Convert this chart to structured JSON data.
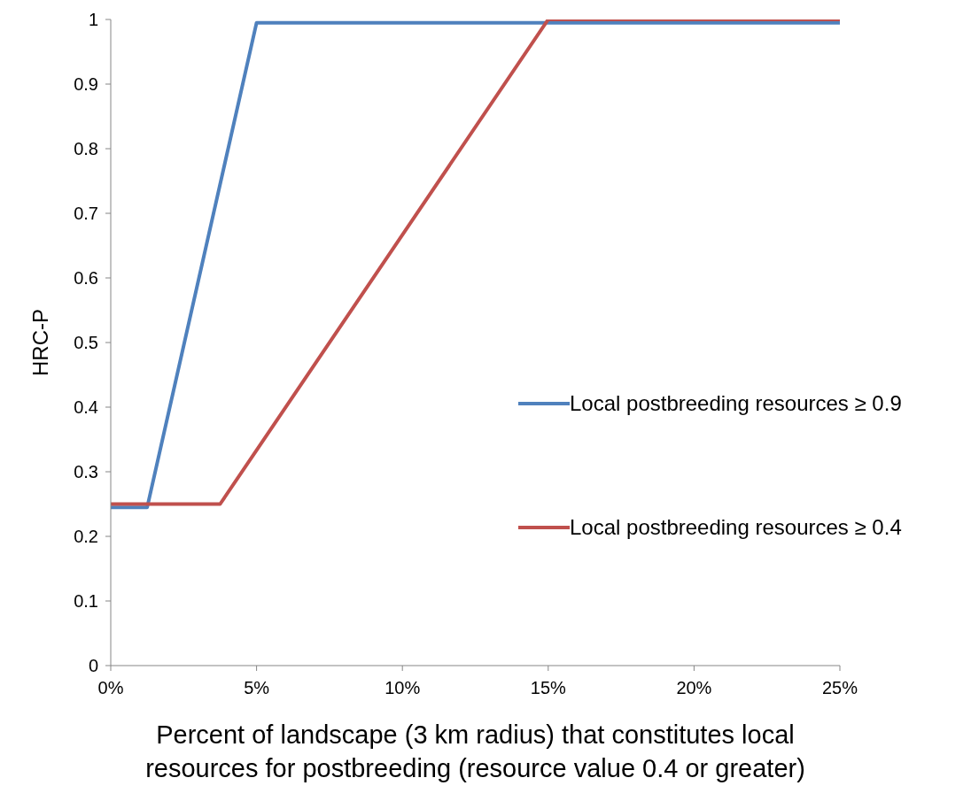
{
  "chart_data": {
    "type": "line",
    "xlabel": "Percent of landscape (3 km radius) that constitutes local resources for postbreeding (resource value 0.4 or greater)",
    "ylabel": "HRC-P",
    "series": [
      {
        "name": "Local postbreeding resources ≥ 0.9",
        "color": "#4f81bd",
        "x": [
          0,
          1.25,
          5,
          25
        ],
        "values": [
          0.245,
          0.245,
          0.995,
          0.995
        ]
      },
      {
        "name": "Local postbreeding resources ≥ 0.4",
        "color": "#c0504d",
        "x": [
          0,
          3.75,
          15,
          25
        ],
        "values": [
          0.25,
          0.25,
          1,
          1
        ]
      }
    ],
    "xlim": [
      0,
      25
    ],
    "xticks": [
      {
        "value": 0,
        "label": "0%"
      },
      {
        "value": 5,
        "label": "5%"
      },
      {
        "value": 10,
        "label": "10%"
      },
      {
        "value": 15,
        "label": "15%"
      },
      {
        "value": 20,
        "label": "20%"
      },
      {
        "value": 25,
        "label": "25%"
      }
    ],
    "ylim": [
      0,
      1
    ],
    "yticks": [
      0,
      0.1,
      0.2,
      0.3,
      0.4,
      0.5,
      0.6,
      0.7,
      0.8,
      0.9,
      1
    ],
    "grid": false,
    "legend": "right",
    "marker": "none",
    "line_style": "solid"
  }
}
